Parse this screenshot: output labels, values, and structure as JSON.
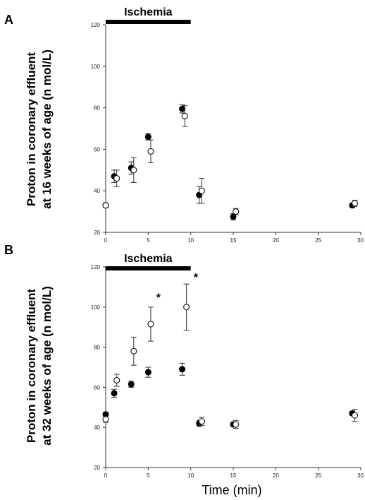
{
  "chart_data": [
    {
      "type": "scatter",
      "panel": "A",
      "ylabel_line1": "Proton in coronary effluent",
      "ylabel_line2": "at 16 weeks of age (n mol/L)",
      "xlabel": "",
      "annotation": "Ischemia",
      "ischemia_interval": [
        0,
        10
      ],
      "xlim": [
        0,
        30
      ],
      "ylim": [
        20,
        120
      ],
      "xticks": [
        0,
        5,
        10,
        15,
        20,
        25,
        30
      ],
      "xtick_labels": [
        "0",
        "5",
        "10",
        "15",
        "20",
        "25",
        "30"
      ],
      "yticks": [
        20,
        40,
        60,
        80,
        100,
        120
      ],
      "ytick_labels": [
        "20",
        "40",
        "60",
        "80",
        "100",
        "120"
      ],
      "series": [
        {
          "marker": "filled",
          "points": [
            {
              "x": 0,
              "y": 33,
              "err": 1
            },
            {
              "x": 1,
              "y": 47,
              "err": 3
            },
            {
              "x": 3,
              "y": 51,
              "err": 3
            },
            {
              "x": 5,
              "y": 66,
              "err": 1.5
            },
            {
              "x": 9,
              "y": 79.5,
              "err": 2
            },
            {
              "x": 11,
              "y": 38,
              "err": 4
            },
            {
              "x": 15,
              "y": 27.5,
              "err": 1.5
            },
            {
              "x": 29,
              "y": 33,
              "err": 1
            }
          ]
        },
        {
          "marker": "open",
          "points": [
            {
              "x": 0,
              "y": 33,
              "err": 1
            },
            {
              "x": 1.3,
              "y": 46,
              "err": 4
            },
            {
              "x": 3.3,
              "y": 50,
              "err": 6
            },
            {
              "x": 5.3,
              "y": 59,
              "err": 5.5
            },
            {
              "x": 9.3,
              "y": 76,
              "err": 5
            },
            {
              "x": 11.3,
              "y": 40,
              "err": 6
            },
            {
              "x": 15.3,
              "y": 30,
              "err": 1.5
            },
            {
              "x": 29.3,
              "y": 34,
              "err": 1.5
            }
          ]
        }
      ],
      "significance_marks": []
    },
    {
      "type": "scatter",
      "panel": "B",
      "ylabel_line1": "Proton in coronary effluent",
      "ylabel_line2": "at 32 weeks of age (n mol/L)",
      "xlabel": "Time (min)",
      "annotation": "Ischemia",
      "ischemia_interval": [
        0,
        10
      ],
      "xlim": [
        0,
        30
      ],
      "ylim": [
        20,
        120
      ],
      "xticks": [
        0,
        5,
        10,
        15,
        20,
        25,
        30
      ],
      "xtick_labels": [
        "0",
        "5",
        "10",
        "15",
        "20",
        "25",
        "30"
      ],
      "yticks": [
        20,
        40,
        60,
        80,
        100,
        120
      ],
      "ytick_labels": [
        "20",
        "40",
        "60",
        "80",
        "100",
        "120"
      ],
      "series": [
        {
          "marker": "filled",
          "points": [
            {
              "x": 0,
              "y": 46.5,
              "err": 1
            },
            {
              "x": 1,
              "y": 57,
              "err": 2
            },
            {
              "x": 3,
              "y": 61.5,
              "err": 1.5
            },
            {
              "x": 5,
              "y": 67.5,
              "err": 2.5
            },
            {
              "x": 9,
              "y": 69,
              "err": 3
            },
            {
              "x": 11,
              "y": 42,
              "err": 1.5
            },
            {
              "x": 15,
              "y": 41.5,
              "err": 1
            },
            {
              "x": 29,
              "y": 47,
              "err": 1
            }
          ]
        },
        {
          "marker": "open",
          "points": [
            {
              "x": 0,
              "y": 44,
              "err": 1.5
            },
            {
              "x": 1.3,
              "y": 63.5,
              "err": 3
            },
            {
              "x": 3.3,
              "y": 78,
              "err": 7
            },
            {
              "x": 5.3,
              "y": 91.5,
              "err": 8.5
            },
            {
              "x": 9.5,
              "y": 100,
              "err": 11.5
            },
            {
              "x": 11.3,
              "y": 43,
              "err": 2
            },
            {
              "x": 15.3,
              "y": 41.5,
              "err": 2
            },
            {
              "x": 29.3,
              "y": 46,
              "err": 3
            }
          ]
        }
      ],
      "significance_marks": [
        {
          "x": 6.2,
          "y": 103,
          "text": "*"
        },
        {
          "x": 10.6,
          "y": 113,
          "text": "*"
        }
      ]
    }
  ]
}
